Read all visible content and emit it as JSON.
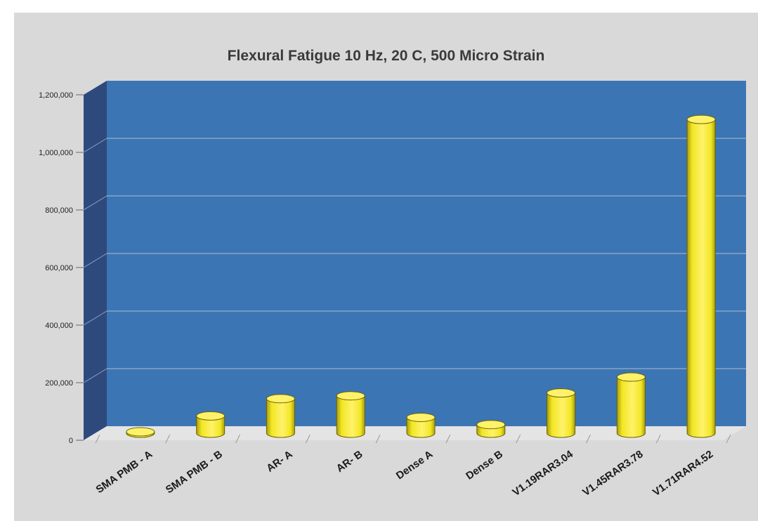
{
  "chart_data": {
    "type": "bar",
    "title": "Flexural Fatigue 10 Hz, 20 C, 500 Micro Strain",
    "xlabel": "",
    "ylabel": "",
    "ylim": [
      0,
      1200000
    ],
    "y_ticks": [
      "0",
      "200,000",
      "400,000",
      "600,000",
      "800,000",
      "1,000,000",
      "1,200,000"
    ],
    "y_tick_values": [
      0,
      200000,
      400000,
      600000,
      800000,
      1000000,
      1200000
    ],
    "categories": [
      "SMA PMB - A",
      "SMA PMB - B",
      "AR- A",
      "AR- B",
      "Dense A",
      "Dense B",
      "V1.19RAR3.04",
      "V1.45RAR3.78",
      "V1.71RAR4.52"
    ],
    "values": [
      5000,
      60000,
      120000,
      130000,
      55000,
      30000,
      140000,
      195000,
      1090000
    ],
    "grid": true,
    "legend": "none",
    "colors": {
      "wall": "#3b75b4",
      "side_wall": "#2e4a7d",
      "floor": "#e4e4e4",
      "bar": "#f2e624",
      "bar_dark": "#a99d0c",
      "bar_top": "#fff26a",
      "gridline": "#8aa3c4"
    }
  }
}
